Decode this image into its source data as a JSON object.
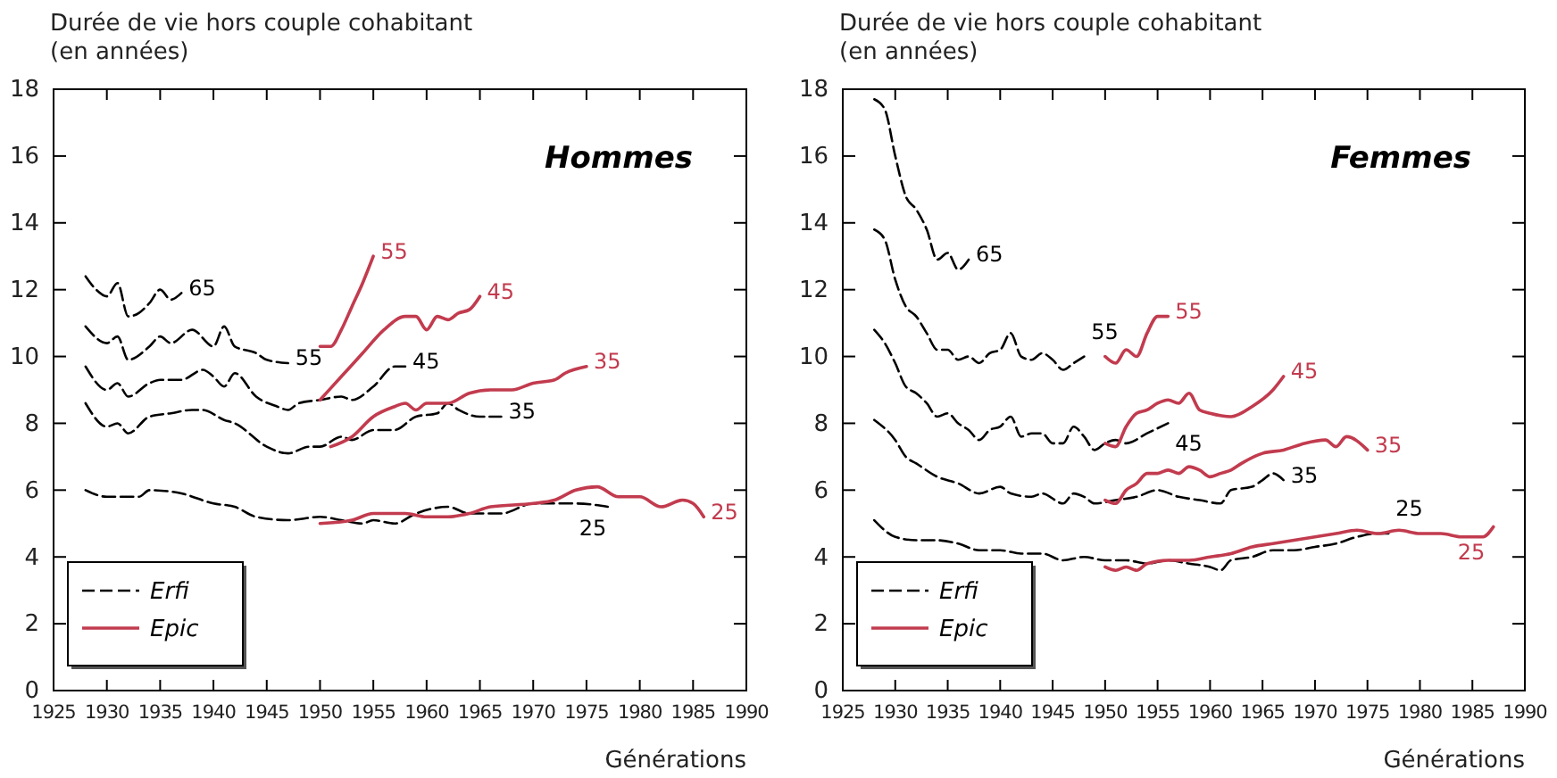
{
  "chart_data": [
    {
      "type": "line",
      "title": "Hommes",
      "ylabel": "Durée de vie hors couple cohabitant\n(en années)",
      "xlabel": "Générations",
      "xlim": [
        1925,
        1990
      ],
      "xticks": [
        1925,
        1930,
        1935,
        1940,
        1945,
        1950,
        1955,
        1960,
        1965,
        1970,
        1975,
        1980,
        1985,
        1990
      ],
      "ylim": [
        0,
        18
      ],
      "yticks": [
        0,
        2,
        4,
        6,
        8,
        10,
        12,
        14,
        16,
        18
      ],
      "grid": false,
      "legend": "bottom left",
      "series": [
        {
          "name": "Erfi",
          "color": "#000000",
          "line_style": "dashed",
          "x": [
            1928,
            1929,
            1930,
            1931,
            1932,
            1933,
            1934,
            1935,
            1936,
            1937
          ],
          "values": [
            12.4,
            12.0,
            11.8,
            12.2,
            11.2,
            11.3,
            11.6,
            12.0,
            11.7,
            11.9
          ]
        },
        {
          "color": "#000000",
          "line_style": "dashed",
          "x": [
            1928,
            1930,
            1931,
            1932,
            1934,
            1935,
            1936,
            1938,
            1940,
            1941,
            1942,
            1944,
            1945,
            1947
          ],
          "values": [
            10.9,
            10.4,
            10.6,
            9.9,
            10.3,
            10.6,
            10.4,
            10.8,
            10.3,
            10.9,
            10.3,
            10.1,
            9.9,
            9.8
          ]
        },
        {
          "color": "#000000",
          "line_style": "dashed",
          "x": [
            1928,
            1930,
            1931,
            1932,
            1934,
            1935,
            1937,
            1939,
            1940,
            1941,
            1942,
            1944,
            1946,
            1947,
            1948,
            1950,
            1952,
            1953,
            1955,
            1957,
            1958
          ],
          "values": [
            9.7,
            9.0,
            9.2,
            8.8,
            9.2,
            9.3,
            9.3,
            9.6,
            9.4,
            9.1,
            9.5,
            8.8,
            8.5,
            8.4,
            8.6,
            8.7,
            8.8,
            8.7,
            9.1,
            9.7,
            9.7
          ]
        },
        {
          "color": "#000000",
          "line_style": "dashed",
          "x": [
            1928,
            1930,
            1931,
            1932,
            1934,
            1936,
            1938,
            1939,
            1941,
            1942,
            1945,
            1947,
            1949,
            1950,
            1952,
            1953,
            1955,
            1957,
            1959,
            1961,
            1962,
            1963,
            1965,
            1967
          ],
          "values": [
            8.6,
            7.9,
            8.0,
            7.7,
            8.2,
            8.3,
            8.4,
            8.4,
            8.1,
            8.0,
            7.3,
            7.1,
            7.3,
            7.3,
            7.6,
            7.5,
            7.8,
            7.8,
            8.2,
            8.3,
            8.6,
            8.4,
            8.2,
            8.2
          ]
        },
        {
          "color": "#000000",
          "line_style": "dashed",
          "x": [
            1928,
            1930,
            1933,
            1934,
            1937,
            1940,
            1942,
            1944,
            1947,
            1950,
            1952,
            1954,
            1955,
            1957,
            1959,
            1962,
            1964,
            1967,
            1970,
            1972,
            1974,
            1977
          ],
          "values": [
            6.0,
            5.8,
            5.8,
            6.0,
            5.9,
            5.6,
            5.5,
            5.2,
            5.1,
            5.2,
            5.1,
            5.0,
            5.1,
            5.0,
            5.3,
            5.5,
            5.3,
            5.3,
            5.6,
            5.6,
            5.6,
            5.5
          ]
        },
        {
          "name": "Epic",
          "color": "#c23b4e",
          "line_style": "solid",
          "x": [
            1950,
            1951,
            1952,
            1953,
            1954,
            1955
          ],
          "values": [
            10.3,
            10.3,
            10.8,
            11.5,
            12.2,
            13.0
          ]
        },
        {
          "color": "#c23b4e",
          "line_style": "solid",
          "x": [
            1950,
            1952,
            1954,
            1956,
            1958,
            1959,
            1960,
            1961,
            1962,
            1963,
            1964,
            1965
          ],
          "values": [
            8.7,
            9.4,
            10.1,
            10.8,
            11.2,
            11.2,
            10.8,
            11.2,
            11.1,
            11.3,
            11.4,
            11.8
          ]
        },
        {
          "color": "#c23b4e",
          "line_style": "solid",
          "x": [
            1951,
            1953,
            1955,
            1957,
            1958,
            1959,
            1960,
            1962,
            1964,
            1966,
            1968,
            1970,
            1972,
            1973,
            1975
          ],
          "values": [
            7.3,
            7.6,
            8.2,
            8.5,
            8.6,
            8.4,
            8.6,
            8.6,
            8.9,
            9.0,
            9.0,
            9.2,
            9.3,
            9.5,
            9.7
          ]
        },
        {
          "color": "#c23b4e",
          "line_style": "solid",
          "x": [
            1950,
            1953,
            1955,
            1958,
            1960,
            1962,
            1964,
            1966,
            1970,
            1972,
            1974,
            1976,
            1978,
            1980,
            1982,
            1984,
            1985,
            1986
          ],
          "values": [
            5.0,
            5.1,
            5.3,
            5.3,
            5.2,
            5.2,
            5.3,
            5.5,
            5.6,
            5.7,
            6.0,
            6.1,
            5.8,
            5.8,
            5.5,
            5.7,
            5.6,
            5.2
          ]
        }
      ],
      "annotations": [
        "65",
        "55",
        "45",
        "35",
        "25",
        "55",
        "45",
        "35",
        "25"
      ]
    },
    {
      "type": "line",
      "title": "Femmes",
      "ylabel": "Durée de vie hors couple cohabitant\n(en années)",
      "xlabel": "Générations",
      "xlim": [
        1925,
        1990
      ],
      "xticks": [
        1925,
        1930,
        1935,
        1940,
        1945,
        1950,
        1955,
        1960,
        1965,
        1970,
        1975,
        1980,
        1985,
        1990
      ],
      "ylim": [
        0,
        18
      ],
      "yticks": [
        0,
        2,
        4,
        6,
        8,
        10,
        12,
        14,
        16,
        18
      ],
      "grid": false,
      "legend": "bottom left",
      "series": [
        {
          "name": "Erfi",
          "color": "#000000",
          "line_style": "dashed",
          "x": [
            1928,
            1929,
            1930,
            1931,
            1932,
            1933,
            1934,
            1935,
            1936,
            1937
          ],
          "values": [
            17.7,
            17.4,
            16.0,
            14.8,
            14.4,
            13.8,
            12.9,
            13.1,
            12.6,
            12.9
          ]
        },
        {
          "color": "#000000",
          "line_style": "dashed",
          "x": [
            1928,
            1929,
            1930,
            1931,
            1932,
            1933,
            1934,
            1935,
            1936,
            1937,
            1938,
            1939,
            1940,
            1941,
            1942,
            1943,
            1944,
            1945,
            1946,
            1947,
            1948
          ],
          "values": [
            13.8,
            13.5,
            12.3,
            11.5,
            11.2,
            10.7,
            10.2,
            10.2,
            9.9,
            10.0,
            9.8,
            10.1,
            10.2,
            10.7,
            10.0,
            9.9,
            10.1,
            9.9,
            9.6,
            9.8,
            10.0
          ]
        },
        {
          "color": "#000000",
          "line_style": "dashed",
          "x": [
            1928,
            1929,
            1930,
            1931,
            1932,
            1933,
            1934,
            1935,
            1936,
            1937,
            1938,
            1939,
            1940,
            1941,
            1942,
            1943,
            1944,
            1945,
            1946,
            1947,
            1948,
            1949,
            1950,
            1951,
            1952,
            1954,
            1956
          ],
          "values": [
            10.8,
            10.4,
            9.8,
            9.1,
            8.9,
            8.6,
            8.2,
            8.3,
            8.0,
            7.8,
            7.5,
            7.8,
            7.9,
            8.2,
            7.6,
            7.7,
            7.7,
            7.4,
            7.4,
            7.9,
            7.6,
            7.2,
            7.4,
            7.5,
            7.4,
            7.7,
            8.0
          ]
        },
        {
          "color": "#000000",
          "line_style": "dashed",
          "x": [
            1928,
            1930,
            1931,
            1932,
            1934,
            1936,
            1938,
            1940,
            1941,
            1943,
            1944,
            1946,
            1947,
            1948,
            1949,
            1951,
            1953,
            1955,
            1957,
            1959,
            1961,
            1962,
            1964,
            1965,
            1966,
            1967
          ],
          "values": [
            8.1,
            7.5,
            7.0,
            6.8,
            6.4,
            6.2,
            5.9,
            6.1,
            5.9,
            5.8,
            5.9,
            5.6,
            5.9,
            5.8,
            5.6,
            5.7,
            5.8,
            6.0,
            5.8,
            5.7,
            5.6,
            6.0,
            6.1,
            6.3,
            6.5,
            6.3
          ]
        },
        {
          "color": "#000000",
          "line_style": "dashed",
          "x": [
            1928,
            1930,
            1932,
            1934,
            1936,
            1938,
            1940,
            1942,
            1944,
            1946,
            1948,
            1950,
            1952,
            1954,
            1956,
            1958,
            1960,
            1961,
            1962,
            1964,
            1966,
            1968,
            1970,
            1972,
            1974,
            1976,
            1977
          ],
          "values": [
            5.1,
            4.6,
            4.5,
            4.5,
            4.4,
            4.2,
            4.2,
            4.1,
            4.1,
            3.9,
            4.0,
            3.9,
            3.9,
            3.8,
            3.9,
            3.8,
            3.7,
            3.6,
            3.9,
            4.0,
            4.2,
            4.2,
            4.3,
            4.4,
            4.6,
            4.7,
            4.7
          ]
        },
        {
          "name": "Epic",
          "color": "#c23b4e",
          "line_style": "solid",
          "x": [
            1950,
            1951,
            1952,
            1953,
            1954,
            1955,
            1956
          ],
          "values": [
            10.0,
            9.8,
            10.2,
            10.0,
            10.7,
            11.2,
            11.2
          ]
        },
        {
          "color": "#c23b4e",
          "line_style": "solid",
          "x": [
            1950,
            1951,
            1952,
            1953,
            1954,
            1955,
            1956,
            1957,
            1958,
            1959,
            1960,
            1962,
            1964,
            1966,
            1967
          ],
          "values": [
            7.4,
            7.3,
            7.9,
            8.3,
            8.4,
            8.6,
            8.7,
            8.6,
            8.9,
            8.4,
            8.3,
            8.2,
            8.5,
            9.0,
            9.4
          ]
        },
        {
          "color": "#c23b4e",
          "line_style": "solid",
          "x": [
            1950,
            1951,
            1952,
            1953,
            1954,
            1955,
            1956,
            1957,
            1958,
            1959,
            1960,
            1961,
            1962,
            1963,
            1965,
            1967,
            1969,
            1971,
            1972,
            1973,
            1975
          ],
          "values": [
            5.7,
            5.6,
            6.0,
            6.2,
            6.5,
            6.5,
            6.6,
            6.5,
            6.7,
            6.6,
            6.4,
            6.5,
            6.6,
            6.8,
            7.1,
            7.2,
            7.4,
            7.5,
            7.3,
            7.6,
            7.2
          ]
        },
        {
          "color": "#c23b4e",
          "line_style": "solid",
          "x": [
            1950,
            1951,
            1952,
            1953,
            1954,
            1956,
            1958,
            1960,
            1962,
            1964,
            1966,
            1968,
            1970,
            1972,
            1974,
            1976,
            1978,
            1980,
            1982,
            1984,
            1986,
            1987
          ],
          "values": [
            3.7,
            3.6,
            3.7,
            3.6,
            3.8,
            3.9,
            3.9,
            4.0,
            4.1,
            4.3,
            4.4,
            4.5,
            4.6,
            4.7,
            4.8,
            4.7,
            4.8,
            4.7,
            4.7,
            4.6,
            4.6,
            4.9
          ]
        }
      ],
      "annotations": [
        "65",
        "55",
        "45",
        "35",
        "25",
        "55",
        "45",
        "35",
        "25"
      ]
    }
  ]
}
